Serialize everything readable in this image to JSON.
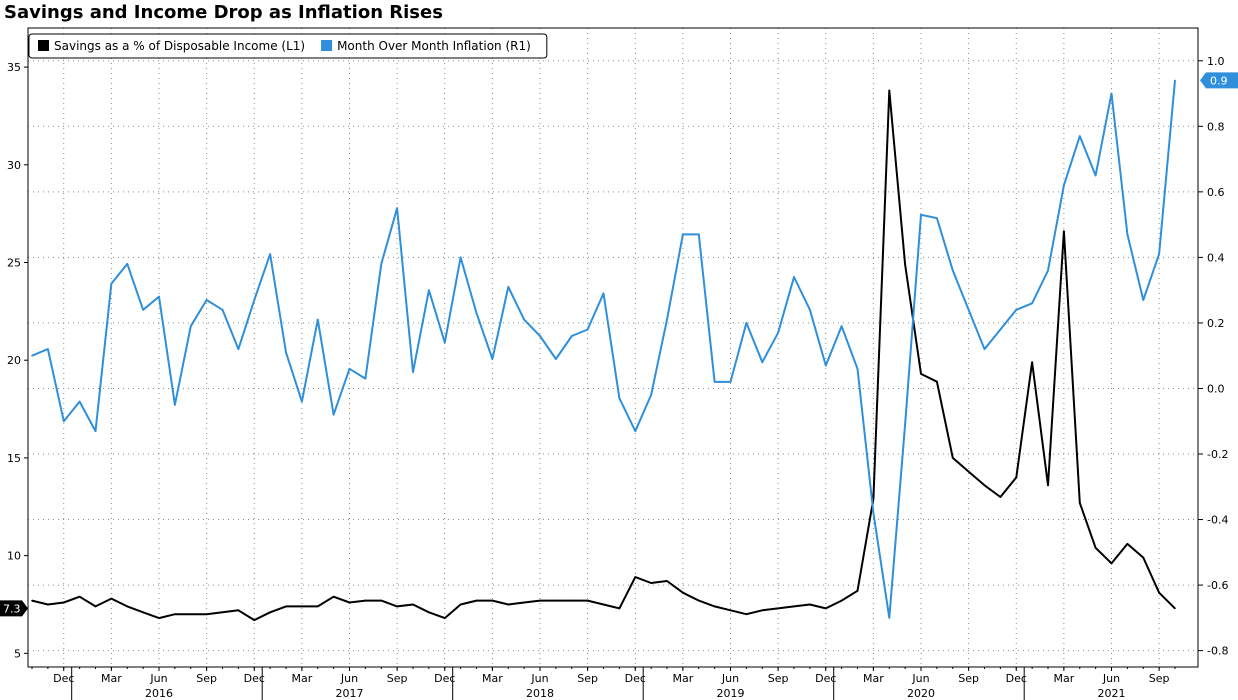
{
  "chart_data": {
    "type": "line",
    "title": "Savings and Income Drop as Inflation Rises",
    "legend_position": "top-left",
    "grid": true,
    "left_axis": {
      "ticks": [
        "5",
        "10",
        "15",
        "20",
        "25",
        "30",
        "35"
      ],
      "ylim": [
        4.3,
        37
      ]
    },
    "right_axis": {
      "ticks": [
        "-0.8",
        "-0.6",
        "-0.4",
        "-0.2",
        "0.0",
        "0.2",
        "0.4",
        "0.6",
        "0.8",
        "1.0"
      ],
      "ylim": [
        -0.85,
        1.1
      ]
    },
    "x_ticks": [
      "Dec",
      "Mar",
      "Jun",
      "Sep",
      "Dec",
      "Mar",
      "Jun",
      "Sep",
      "Dec",
      "Mar",
      "Jun",
      "Sep",
      "Dec",
      "Mar",
      "Jun",
      "Sep",
      "Dec",
      "Mar",
      "Jun",
      "Sep",
      "Dec",
      "Mar",
      "Jun",
      "Sep"
    ],
    "x_years": [
      "2016",
      "2017",
      "2018",
      "2019",
      "2020",
      "2021"
    ],
    "x": [
      "2015-10",
      "2015-11",
      "2015-12",
      "2016-01",
      "2016-02",
      "2016-03",
      "2016-04",
      "2016-05",
      "2016-06",
      "2016-07",
      "2016-08",
      "2016-09",
      "2016-10",
      "2016-11",
      "2016-12",
      "2017-01",
      "2017-02",
      "2017-03",
      "2017-04",
      "2017-05",
      "2017-06",
      "2017-07",
      "2017-08",
      "2017-09",
      "2017-10",
      "2017-11",
      "2017-12",
      "2018-01",
      "2018-02",
      "2018-03",
      "2018-04",
      "2018-05",
      "2018-06",
      "2018-07",
      "2018-08",
      "2018-09",
      "2018-10",
      "2018-11",
      "2018-12",
      "2019-01",
      "2019-02",
      "2019-03",
      "2019-04",
      "2019-05",
      "2019-06",
      "2019-07",
      "2019-08",
      "2019-09",
      "2019-10",
      "2019-11",
      "2019-12",
      "2020-01",
      "2020-02",
      "2020-03",
      "2020-04",
      "2020-05",
      "2020-06",
      "2020-07",
      "2020-08",
      "2020-09",
      "2020-10",
      "2020-11",
      "2020-12",
      "2021-01",
      "2021-02",
      "2021-03",
      "2021-04",
      "2021-05",
      "2021-06",
      "2021-07",
      "2021-08",
      "2021-09",
      "2021-10"
    ],
    "series": [
      {
        "name": "Savings as a % of Disposable Income (L1)",
        "axis": "left",
        "color": "#000000",
        "last_value": "7.3",
        "values": [
          7.7,
          7.5,
          7.6,
          7.9,
          7.4,
          7.8,
          7.4,
          7.1,
          6.8,
          7.0,
          7.0,
          7.0,
          7.1,
          7.2,
          6.7,
          7.1,
          7.4,
          7.4,
          7.4,
          7.9,
          7.6,
          7.7,
          7.7,
          7.4,
          7.5,
          7.1,
          6.8,
          7.5,
          7.7,
          7.7,
          7.5,
          7.6,
          7.7,
          7.7,
          7.7,
          7.7,
          7.5,
          7.3,
          8.9,
          8.6,
          8.7,
          8.1,
          7.7,
          7.4,
          7.2,
          7.0,
          7.2,
          7.3,
          7.4,
          7.5,
          7.3,
          7.7,
          8.2,
          12.9,
          33.8,
          24.9,
          19.3,
          18.9,
          15.0,
          14.3,
          13.6,
          13.0,
          14.0,
          19.9,
          13.6,
          26.6,
          12.7,
          10.4,
          9.6,
          10.6,
          9.9,
          8.1,
          7.3
        ]
      },
      {
        "name": "Month Over Month Inflation (R1)",
        "axis": "right",
        "color": "#2f8fdb",
        "last_value": "0.9",
        "values": [
          0.1,
          0.12,
          -0.1,
          -0.04,
          -0.13,
          0.32,
          0.38,
          0.24,
          0.28,
          -0.05,
          0.19,
          0.27,
          0.24,
          0.12,
          0.27,
          0.41,
          0.11,
          -0.04,
          0.21,
          -0.08,
          0.06,
          0.03,
          0.38,
          0.55,
          0.05,
          0.3,
          0.14,
          0.4,
          0.23,
          0.09,
          0.31,
          0.21,
          0.16,
          0.09,
          0.16,
          0.18,
          0.29,
          -0.03,
          -0.13,
          -0.02,
          0.21,
          0.47,
          0.47,
          0.02,
          0.02,
          0.2,
          0.08,
          0.17,
          0.34,
          0.24,
          0.07,
          0.19,
          0.06,
          -0.38,
          -0.7,
          -0.11,
          0.53,
          0.52,
          0.36,
          0.24,
          0.12,
          0.18,
          0.24,
          0.26,
          0.36,
          0.62,
          0.77,
          0.65,
          0.9,
          0.47,
          0.27,
          0.41,
          0.94
        ]
      }
    ]
  }
}
